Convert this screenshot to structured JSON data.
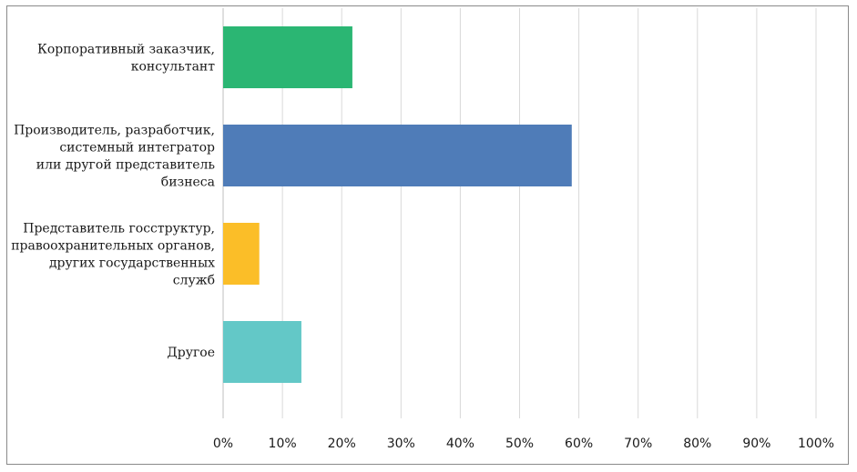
{
  "chart_data": {
    "type": "bar",
    "orientation": "horizontal",
    "title": "",
    "xlabel": "",
    "ylabel": "",
    "xlim": [
      0,
      100
    ],
    "grid": true,
    "legend": "none",
    "categories": [
      [
        "Корпоративный заказчик,",
        "консультант"
      ],
      [
        "Производитель, разработчик,",
        "системный интегратор",
        "или другой представитель",
        "бизнеса"
      ],
      [
        "Представитель госструктур,",
        "правоохранительных органов,",
        "других государственных",
        "служб"
      ],
      [
        "Другое"
      ]
    ],
    "values": [
      21.8,
      58.8,
      6.1,
      13.2
    ],
    "colors": [
      "#2bb673",
      "#4f7cb8",
      "#fbbe28",
      "#63c8c7"
    ],
    "ticks": [
      "0%",
      "10%",
      "20%",
      "30%",
      "40%",
      "50%",
      "60%",
      "70%",
      "80%",
      "90%",
      "100%"
    ]
  }
}
